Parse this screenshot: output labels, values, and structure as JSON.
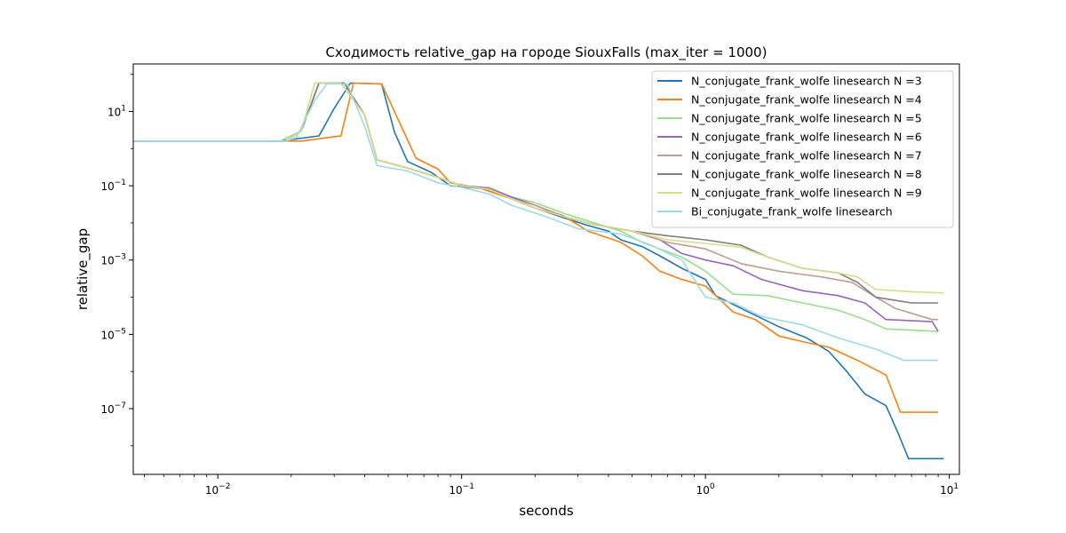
{
  "chart_data": {
    "type": "line",
    "title": "Сходимость relative_gap на городе SiouxFalls  (max_iter = 1000)",
    "xlabel": "seconds",
    "ylabel": "relative_gap",
    "xscale": "log",
    "yscale": "log",
    "xlim": [
      0.0045,
      11
    ],
    "ylim": [
      1.7e-09,
      190
    ],
    "x_ticks": [
      {
        "value": 0.01,
        "label": "10^-2"
      },
      {
        "value": 0.1,
        "label": "10^-1"
      },
      {
        "value": 1,
        "label": "10^0"
      },
      {
        "value": 10,
        "label": "10^1"
      }
    ],
    "y_ticks": [
      {
        "value": 10,
        "label": "10^1"
      },
      {
        "value": 0.1,
        "label": "10^-1"
      },
      {
        "value": 0.001,
        "label": "10^-3"
      },
      {
        "value": 1e-05,
        "label": "10^-5"
      },
      {
        "value": 1e-07,
        "label": "10^-7"
      }
    ],
    "grid": false,
    "legend_position": "top-right",
    "series": [
      {
        "name": "N_conjugate_frank_wolfe linesearch N =3",
        "color": "#1f77b4",
        "points": [
          [
            0.0045,
            1.6
          ],
          [
            0.018,
            1.6
          ],
          [
            0.026,
            2.2
          ],
          [
            0.03,
            12
          ],
          [
            0.035,
            58
          ],
          [
            0.047,
            55
          ],
          [
            0.053,
            2.8
          ],
          [
            0.06,
            0.45
          ],
          [
            0.075,
            0.23
          ],
          [
            0.09,
            0.1
          ],
          [
            0.12,
            0.085
          ],
          [
            0.16,
            0.045
          ],
          [
            0.2,
            0.025
          ],
          [
            0.26,
            0.014
          ],
          [
            0.32,
            0.009
          ],
          [
            0.4,
            0.006
          ],
          [
            0.45,
            0.0035
          ],
          [
            0.55,
            0.0023
          ],
          [
            0.65,
            0.0013
          ],
          [
            0.8,
            0.0006
          ],
          [
            1.0,
            0.0003
          ],
          [
            1.1,
            0.00011
          ],
          [
            1.5,
            4e-05
          ],
          [
            2.0,
            1.6e-05
          ],
          [
            2.6,
            8e-06
          ],
          [
            3.2,
            3.5e-06
          ],
          [
            3.8,
            1e-06
          ],
          [
            4.5,
            2.5e-07
          ],
          [
            5.5,
            1.2e-07
          ],
          [
            6.2,
            2e-08
          ],
          [
            6.8,
            4.5e-09
          ],
          [
            9.5,
            4.5e-09
          ]
        ]
      },
      {
        "name": "N_conjugate_frank_wolfe linesearch N =4",
        "color": "#ff7f0e",
        "points": [
          [
            0.0045,
            1.6
          ],
          [
            0.022,
            1.6
          ],
          [
            0.032,
            2.2
          ],
          [
            0.036,
            58
          ],
          [
            0.047,
            55
          ],
          [
            0.065,
            0.55
          ],
          [
            0.08,
            0.28
          ],
          [
            0.09,
            0.12
          ],
          [
            0.12,
            0.085
          ],
          [
            0.16,
            0.045
          ],
          [
            0.2,
            0.025
          ],
          [
            0.26,
            0.016
          ],
          [
            0.33,
            0.006
          ],
          [
            0.45,
            0.003
          ],
          [
            0.55,
            0.0013
          ],
          [
            0.65,
            0.0005
          ],
          [
            0.8,
            0.0003
          ],
          [
            1.0,
            0.0002
          ],
          [
            1.3,
            4e-05
          ],
          [
            1.6,
            2.5e-05
          ],
          [
            2.0,
            9e-06
          ],
          [
            2.6,
            6e-06
          ],
          [
            3.2,
            4.5e-06
          ],
          [
            4.2,
            2e-06
          ],
          [
            5.5,
            8e-07
          ],
          [
            6.3,
            8e-08
          ],
          [
            9.0,
            8e-08
          ]
        ]
      },
      {
        "name": "N_conjugate_frank_wolfe linesearch N =5",
        "color": "#98df8a",
        "points": [
          [
            0.0045,
            1.6
          ],
          [
            0.018,
            1.6
          ],
          [
            0.022,
            3
          ],
          [
            0.025,
            58
          ],
          [
            0.032,
            58
          ],
          [
            0.04,
            8
          ],
          [
            0.045,
            0.5
          ],
          [
            0.06,
            0.3
          ],
          [
            0.08,
            0.17
          ],
          [
            0.1,
            0.1
          ],
          [
            0.13,
            0.09
          ],
          [
            0.16,
            0.05
          ],
          [
            0.2,
            0.035
          ],
          [
            0.27,
            0.017
          ],
          [
            0.35,
            0.01
          ],
          [
            0.45,
            0.006
          ],
          [
            0.55,
            0.003
          ],
          [
            0.65,
            0.002
          ],
          [
            0.8,
            0.0012
          ],
          [
            1.0,
            0.0005
          ],
          [
            1.3,
            0.00012
          ],
          [
            1.8,
            0.00011
          ],
          [
            2.5,
            7e-05
          ],
          [
            3.5,
            4.5e-05
          ],
          [
            4.5,
            2.5e-05
          ],
          [
            5.5,
            1.4e-05
          ],
          [
            9.0,
            1.2e-05
          ]
        ]
      },
      {
        "name": "N_conjugate_frank_wolfe linesearch N =6",
        "color": "#9467bd",
        "points": [
          [
            0.0045,
            1.6
          ],
          [
            0.019,
            1.6
          ],
          [
            0.022,
            3
          ],
          [
            0.026,
            58
          ],
          [
            0.033,
            58
          ],
          [
            0.04,
            8
          ],
          [
            0.045,
            0.5
          ],
          [
            0.06,
            0.3
          ],
          [
            0.08,
            0.17
          ],
          [
            0.1,
            0.1
          ],
          [
            0.13,
            0.085
          ],
          [
            0.16,
            0.05
          ],
          [
            0.2,
            0.03
          ],
          [
            0.27,
            0.014
          ],
          [
            0.35,
            0.009
          ],
          [
            0.5,
            0.006
          ],
          [
            0.65,
            0.0035
          ],
          [
            0.8,
            0.0015
          ],
          [
            1.0,
            0.001
          ],
          [
            1.3,
            0.0007
          ],
          [
            1.7,
            0.0003
          ],
          [
            2.5,
            0.00015
          ],
          [
            3.5,
            0.00011
          ],
          [
            4.5,
            7e-05
          ],
          [
            5.5,
            2.5e-05
          ],
          [
            8.5,
            2.2e-05
          ],
          [
            9.0,
            1.2e-05
          ]
        ]
      },
      {
        "name": "N_conjugate_frank_wolfe linesearch N =7",
        "color": "#c49c94",
        "points": [
          [
            0.0045,
            1.6
          ],
          [
            0.019,
            1.6
          ],
          [
            0.022,
            3
          ],
          [
            0.026,
            58
          ],
          [
            0.033,
            58
          ],
          [
            0.04,
            8
          ],
          [
            0.045,
            0.5
          ],
          [
            0.06,
            0.3
          ],
          [
            0.08,
            0.17
          ],
          [
            0.1,
            0.1
          ],
          [
            0.13,
            0.08
          ],
          [
            0.16,
            0.045
          ],
          [
            0.2,
            0.03
          ],
          [
            0.27,
            0.014
          ],
          [
            0.35,
            0.009
          ],
          [
            0.5,
            0.006
          ],
          [
            0.7,
            0.003
          ],
          [
            1.0,
            0.002
          ],
          [
            1.4,
            0.0008
          ],
          [
            2.0,
            0.0005
          ],
          [
            3.0,
            0.00035
          ],
          [
            4.0,
            0.00025
          ],
          [
            5.0,
            0.0001
          ],
          [
            6.0,
            5e-05
          ],
          [
            8.5,
            2.5e-05
          ],
          [
            9.0,
            2.5e-05
          ]
        ]
      },
      {
        "name": "N_conjugate_frank_wolfe linesearch N =8",
        "color": "#7f7f7f",
        "points": [
          [
            0.0045,
            1.6
          ],
          [
            0.019,
            1.6
          ],
          [
            0.022,
            3
          ],
          [
            0.026,
            58
          ],
          [
            0.033,
            58
          ],
          [
            0.04,
            8
          ],
          [
            0.045,
            0.5
          ],
          [
            0.06,
            0.3
          ],
          [
            0.08,
            0.17
          ],
          [
            0.1,
            0.1
          ],
          [
            0.13,
            0.08
          ],
          [
            0.16,
            0.045
          ],
          [
            0.2,
            0.025
          ],
          [
            0.27,
            0.014
          ],
          [
            0.35,
            0.009
          ],
          [
            0.5,
            0.006
          ],
          [
            0.7,
            0.0045
          ],
          [
            1.0,
            0.0035
          ],
          [
            1.4,
            0.0025
          ],
          [
            1.8,
            0.0012
          ],
          [
            2.5,
            0.0006
          ],
          [
            3.5,
            0.00045
          ],
          [
            4.2,
            0.00025
          ],
          [
            5.0,
            0.0001
          ],
          [
            7.0,
            7e-05
          ],
          [
            9.0,
            7e-05
          ]
        ]
      },
      {
        "name": "N_conjugate_frank_wolfe linesearch N =9",
        "color": "#dbdb8d",
        "points": [
          [
            0.0045,
            1.6
          ],
          [
            0.019,
            1.6
          ],
          [
            0.022,
            3
          ],
          [
            0.025,
            58
          ],
          [
            0.032,
            58
          ],
          [
            0.04,
            8
          ],
          [
            0.045,
            0.5
          ],
          [
            0.06,
            0.3
          ],
          [
            0.08,
            0.17
          ],
          [
            0.1,
            0.1
          ],
          [
            0.13,
            0.08
          ],
          [
            0.16,
            0.045
          ],
          [
            0.2,
            0.025
          ],
          [
            0.27,
            0.014
          ],
          [
            0.35,
            0.009
          ],
          [
            0.5,
            0.006
          ],
          [
            0.7,
            0.0035
          ],
          [
            1.0,
            0.0028
          ],
          [
            1.4,
            0.0022
          ],
          [
            1.8,
            0.0012
          ],
          [
            2.5,
            0.0006
          ],
          [
            3.5,
            0.00045
          ],
          [
            4.2,
            0.00035
          ],
          [
            5.0,
            0.00016
          ],
          [
            7.0,
            0.00014
          ],
          [
            9.5,
            0.00013
          ]
        ]
      },
      {
        "name": "Bi_conjugate_frank_wolfe linesearch",
        "color": "#9edae5",
        "points": [
          [
            0.0045,
            1.6
          ],
          [
            0.019,
            1.6
          ],
          [
            0.021,
            2
          ],
          [
            0.025,
            20
          ],
          [
            0.028,
            55
          ],
          [
            0.034,
            55
          ],
          [
            0.04,
            4
          ],
          [
            0.045,
            0.35
          ],
          [
            0.06,
            0.25
          ],
          [
            0.08,
            0.12
          ],
          [
            0.1,
            0.09
          ],
          [
            0.13,
            0.06
          ],
          [
            0.16,
            0.03
          ],
          [
            0.22,
            0.015
          ],
          [
            0.3,
            0.007
          ],
          [
            0.45,
            0.005
          ],
          [
            0.6,
            0.0025
          ],
          [
            0.8,
            0.001
          ],
          [
            1.0,
            0.0001
          ],
          [
            1.3,
            7e-05
          ],
          [
            1.7,
            3e-05
          ],
          [
            2.5,
            1.8e-05
          ],
          [
            3.5,
            8e-06
          ],
          [
            5.0,
            4e-06
          ],
          [
            6.5,
            2e-06
          ],
          [
            9.0,
            2e-06
          ]
        ]
      }
    ]
  }
}
